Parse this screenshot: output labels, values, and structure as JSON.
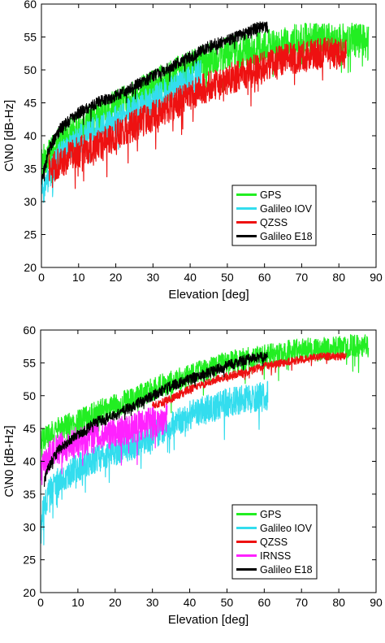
{
  "chart_data": [
    {
      "type": "line",
      "xlabel": "Elevation [deg]",
      "ylabel": "C\\N0 [dB-Hz]",
      "xlim": [
        0,
        90
      ],
      "ylim": [
        20,
        60
      ],
      "xticks": [
        0,
        10,
        20,
        30,
        40,
        50,
        60,
        70,
        80,
        90
      ],
      "yticks": [
        20,
        25,
        30,
        35,
        40,
        45,
        50,
        55,
        60
      ],
      "grid": false,
      "legend_position": "lower-right",
      "series": [
        {
          "name": "GPS",
          "color": "#22ee22",
          "x": [
            0,
            2,
            5,
            10,
            15,
            20,
            25,
            30,
            35,
            40,
            45,
            50,
            55,
            60,
            65,
            70,
            75,
            80,
            85,
            88
          ],
          "y": [
            36,
            37,
            39,
            41,
            43,
            44.5,
            46,
            47.5,
            49,
            50.5,
            51.5,
            52.5,
            53,
            53.5,
            54,
            54.5,
            54.5,
            54.5,
            54.5,
            54
          ],
          "noise": 2.6
        },
        {
          "name": "Galileo IOV",
          "color": "#33ddee",
          "x": [
            0,
            2,
            5,
            10,
            15,
            20,
            25,
            30,
            35,
            40,
            43
          ],
          "y": [
            31,
            34,
            37,
            39.5,
            41,
            42.5,
            44,
            45.5,
            47,
            48.5,
            49.5
          ],
          "noise": 2.2
        },
        {
          "name": "QZSS",
          "color": "#ee1111",
          "x": [
            2,
            5,
            10,
            15,
            20,
            25,
            30,
            35,
            40,
            45,
            50,
            55,
            60,
            65,
            70,
            75,
            80,
            82
          ],
          "y": [
            35,
            36,
            37.5,
            38.5,
            40,
            41.5,
            43,
            44.5,
            46,
            47.5,
            48.5,
            49.5,
            50.5,
            51.5,
            52,
            52.5,
            52.5,
            52.5
          ],
          "noise": 2.4
        },
        {
          "name": "Galileo E18",
          "color": "#000000",
          "x": [
            0,
            2,
            5,
            10,
            15,
            20,
            25,
            30,
            35,
            40,
            45,
            50,
            55,
            58,
            61
          ],
          "y": [
            33,
            38,
            41,
            43.5,
            45,
            46,
            47.5,
            49,
            50.5,
            52,
            53.5,
            54.5,
            55.5,
            56.5,
            56.5
          ],
          "noise": 0.9
        }
      ]
    },
    {
      "type": "line",
      "xlabel": "Elevation [deg]",
      "ylabel": "C\\N0 [dB-Hz]",
      "xlim": [
        0,
        90
      ],
      "ylim": [
        20,
        60
      ],
      "xticks": [
        0,
        10,
        20,
        30,
        40,
        50,
        60,
        70,
        80,
        90
      ],
      "yticks": [
        20,
        25,
        30,
        35,
        40,
        45,
        50,
        55,
        60
      ],
      "grid": false,
      "legend_position": "lower-right",
      "series": [
        {
          "name": "GPS",
          "color": "#22ee22",
          "x": [
            0,
            2,
            5,
            10,
            15,
            20,
            25,
            30,
            35,
            40,
            45,
            50,
            55,
            60,
            65,
            70,
            75,
            80,
            85,
            88
          ],
          "y": [
            43,
            44,
            45,
            46,
            47.5,
            48.5,
            49.5,
            51,
            52,
            53,
            54,
            55,
            55.5,
            56,
            56.5,
            57,
            57,
            57.5,
            57.5,
            57.5
          ],
          "noise": 1.8
        },
        {
          "name": "Galileo IOV",
          "color": "#33ddee",
          "x": [
            0,
            2,
            5,
            10,
            15,
            20,
            25,
            30,
            35,
            40,
            45,
            50,
            55,
            61
          ],
          "y": [
            31,
            35,
            37,
            39,
            40.5,
            41.5,
            42.5,
            44,
            45.5,
            47,
            48,
            49,
            49.5,
            50
          ],
          "noise": 2.2
        },
        {
          "name": "QZSS",
          "color": "#ee1111",
          "x": [
            30,
            35,
            40,
            45,
            50,
            55,
            60,
            65,
            70,
            75,
            80,
            82
          ],
          "y": [
            48.5,
            49.5,
            51,
            52,
            53,
            53.5,
            54.5,
            55,
            55.5,
            56,
            56,
            56
          ],
          "noise": 0.6
        },
        {
          "name": "IRNSS",
          "color": "#ff22ff",
          "x": [
            0,
            2,
            5,
            10,
            15,
            20,
            25,
            30,
            34
          ],
          "y": [
            38,
            40.5,
            42,
            43,
            43.5,
            44.5,
            45,
            46,
            46.5
          ],
          "noise": 2.4
        },
        {
          "name": "Galileo E18",
          "color": "#000000",
          "x": [
            1,
            2,
            5,
            10,
            15,
            20,
            25,
            30,
            35,
            40,
            45,
            50,
            55,
            61
          ],
          "y": [
            37,
            39,
            42,
            44,
            46,
            47,
            48.5,
            50,
            51.5,
            52.5,
            53.5,
            54.5,
            55.5,
            56
          ],
          "noise": 0.8
        }
      ]
    }
  ]
}
